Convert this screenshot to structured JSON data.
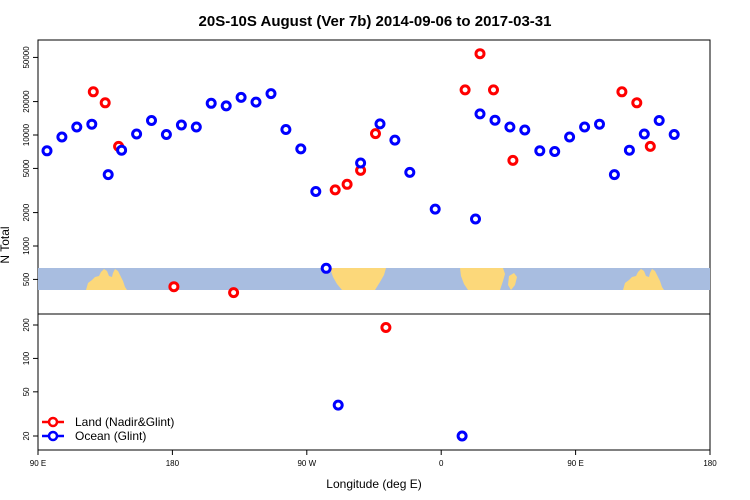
{
  "chart_data": {
    "type": "scatter",
    "title": "20S-10S August (Ver 7b)   2014-09-06 to 2017-03-31",
    "xlabel": "Longitude (deg E)",
    "ylabel": "N Total",
    "x_range": [
      90,
      540
    ],
    "y_scale": "log",
    "x_ticks": [
      {
        "x": 90,
        "label": "90 E"
      },
      {
        "x": 180,
        "label": "180"
      },
      {
        "x": 270,
        "label": "90 W"
      },
      {
        "x": 360,
        "label": "0"
      },
      {
        "x": 450,
        "label": "90 E"
      },
      {
        "x": 540,
        "label": "180"
      }
    ],
    "upper_y_ticks": [
      500,
      1000,
      2000,
      5000,
      10000,
      20000,
      50000
    ],
    "lower_y_ticks": [
      20,
      50,
      100,
      200
    ],
    "legend": {
      "position": "bottom-left"
    },
    "series": [
      {
        "name": "Land (Nadir&Glint)",
        "color": "#ff0000",
        "points": [
          [
            127,
            24500
          ],
          [
            135,
            19500
          ],
          [
            144,
            7900
          ],
          [
            181,
            430
          ],
          [
            221,
            380
          ],
          [
            289,
            3200
          ],
          [
            297,
            3600
          ],
          [
            306,
            4800
          ],
          [
            316,
            10300
          ],
          [
            323,
            190
          ],
          [
            376,
            25500
          ],
          [
            386,
            54000
          ],
          [
            395,
            25500
          ],
          [
            408,
            5900
          ],
          [
            481,
            24500
          ],
          [
            491,
            19500
          ],
          [
            500,
            7900
          ]
        ]
      },
      {
        "name": "Ocean (Glint)",
        "color": "#0000ff",
        "points": [
          [
            96,
            7200
          ],
          [
            106,
            9600
          ],
          [
            116,
            11800
          ],
          [
            126,
            12500
          ],
          [
            137,
            4400
          ],
          [
            146,
            7300
          ],
          [
            156,
            10200
          ],
          [
            166,
            13500
          ],
          [
            176,
            10100
          ],
          [
            186,
            12300
          ],
          [
            196,
            11800
          ],
          [
            206,
            19300
          ],
          [
            216,
            18300
          ],
          [
            226,
            21800
          ],
          [
            236,
            19800
          ],
          [
            246,
            23600
          ],
          [
            256,
            11200
          ],
          [
            266,
            7500
          ],
          [
            276,
            3100
          ],
          [
            283,
            630
          ],
          [
            291,
            38
          ],
          [
            306,
            5600
          ],
          [
            319,
            12600
          ],
          [
            329,
            9000
          ],
          [
            339,
            4600
          ],
          [
            356,
            2150
          ],
          [
            374,
            20
          ],
          [
            383,
            1750
          ],
          [
            386,
            15500
          ],
          [
            396,
            13600
          ],
          [
            406,
            11800
          ],
          [
            416,
            11100
          ],
          [
            426,
            7200
          ],
          [
            436,
            7100
          ],
          [
            446,
            9600
          ],
          [
            456,
            11800
          ],
          [
            466,
            12500
          ],
          [
            476,
            4400
          ],
          [
            486,
            7300
          ],
          [
            496,
            10200
          ],
          [
            506,
            13500
          ],
          [
            516,
            10100
          ]
        ]
      }
    ]
  }
}
